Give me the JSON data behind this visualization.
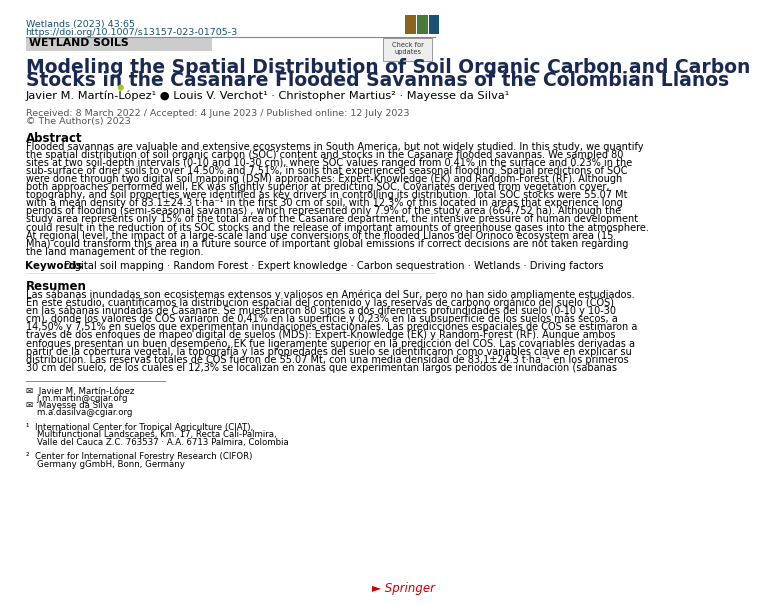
{
  "bg_color": "#ffffff",
  "header_line_color": "#888888",
  "header_text_line1": "Wetlands (2023) 43:65",
  "header_text_line2": "https://doi.org/10.1007/s13157-023-01705-3",
  "header_text_color": "#1a5276",
  "section_label": "WETLAND SOILS",
  "section_bg": "#cccccc",
  "section_text_color": "#000000",
  "title_line1": "Modeling the Spatial Distribution of Soil Organic Carbon and Carbon",
  "title_line2": "Stocks in the Casanare Flooded Savannas of the Colombian Llanos",
  "title_color": "#1a2951",
  "authors": "Javier M. Martín-López¹ ● Louis V. Verchot¹ · Christopher Martius² · Mayesse da Silva¹",
  "author_color": "#000000",
  "received_text": "Received: 8 March 2022 / Accepted: 4 June 2023 / Published online: 12 July 2023",
  "copyright_text": "© The Author(s) 2023",
  "dates_color": "#555555",
  "abstract_title": "Abstract",
  "abstract_lines": [
    "Flooded savannas are valuable and extensive ecosystems in South America, but not widely studied. In this study, we quantify",
    "the spatial distribution of soil organic carbon (SOC) content and stocks in the Casanare flooded savannas. We sampled 80",
    "sites at two soil-depth intervals (0-10 and 10-30 cm), where SOC values ranged from 0.41% in the surface and 0.23% in the",
    "sub-surface of drier soils to over 14.50% and 7.51%, in soils that experienced seasonal flooding. Spatial predictions of SOC",
    "were done through two digital soil mapping (DSM) approaches: Expert-Knowledge (EK) and Random-Forest (RF). Although",
    "both approaches performed well, EK was slightly superior at predicting SOC. Covariates derived from vegetation cover,",
    "topography, and soil properties were identified as key drivers in controlling its distribution. Total SOC stocks were 55.07 Mt",
    "with a mean density of 83.1±24.3 t·ha⁻¹ in the first 30 cm of soil, with 12.3% of this located in areas that experience long",
    "periods of flooding (semi-seasonal savannas) , which represented only 7.9% of the study area (664,752 ha). Although the",
    "study area represents only 15% of the total area of the Casanare department, the intensive pressure of human development",
    "could result in the reduction of its SOC stocks and the release of important amounts of greenhouse gases into the atmosphere.",
    "At regional level, the impact of a large-scale land use conversions of the flooded Llanos del Orinoco ecosystem area (15",
    "Mha) could transform this area in a future source of important global emissions if correct decisions are not taken regarding",
    "the land management of the region."
  ],
  "keywords_label": "Keywords",
  "keywords_body": "Digital soil mapping · Random Forest · Expert knowledge · Carbon sequestration · Wetlands · Driving factors",
  "resumen_title": "Resumen",
  "resumen_lines": [
    "Las sábanas inundadas son ecosistemas extensos y valiosos en América del Sur, pero no han sido ampliamente estudiados.",
    "En este estudio, cuantificamos la distribución espacial del contenido y las reservas de carbono orgánico del suelo (COS)",
    "en las sábanas inundadas de Casanare. Se muestrearon 80 sitios a dos diferentes profundidades del suelo (0-10 y 10-30",
    "cm), donde los valores de COS variaron de 0,41% en la superficie y 0,23% en la subsuperficie de los suelos más secos, a",
    "14,50% y 7,51% en suelos que experimentan inundaciones estacionales. Las predicciones espaciales de COS se estimaron a",
    "través de dos enfoques de mapeo digital de suelos (MDS): Expert-Knowledge (EK) y Random-Forest (RF). Aunque ambos",
    "enfoques presentan un buen desempeño, EK fue ligeramente superior en la predicción del COS. Las covariables derivadas a",
    "partir de la cobertura vegetal, la topografía y las propiedades del suelo se identificaron como variables clave en explicar su",
    "distribución. Las reservas totales de COS fueron de 55.07 Mt, con una media densidad de 83,1±24.3 t·ha⁻¹ en los primeros",
    "30 cm del suelo, de los cuales el 12,3% se localizan en zonas que experimentan largos periodos de inundación (sabanas"
  ],
  "affil1": "✉  Javier M. Martín-López",
  "affil1b": "    j.m.martin@cgiar.org",
  "affil2": "✉  Mayesse da Silva",
  "affil2b": "    m.a.dasilva@cgiar.org",
  "affil_inst1a": "¹  International Center for Tropical Agriculture (CIAT),",
  "affil_inst1b": "    Multifunctional Landscapes, Km. 17, Recta Cali-Palmira,",
  "affil_inst1c": "    Valle del Cauca Z.C. 763537 · A.A. 6713 Palmira, Colombia",
  "affil_inst2a": "²  Center for International Forestry Research (CIFOR)",
  "affil_inst2b": "    Germany gGmbH, Bonn, Germany",
  "springer_color": "#cc0000",
  "text_color": "#000000",
  "logo_colors": [
    "#8B6320",
    "#4a7a3a",
    "#1a5276"
  ]
}
